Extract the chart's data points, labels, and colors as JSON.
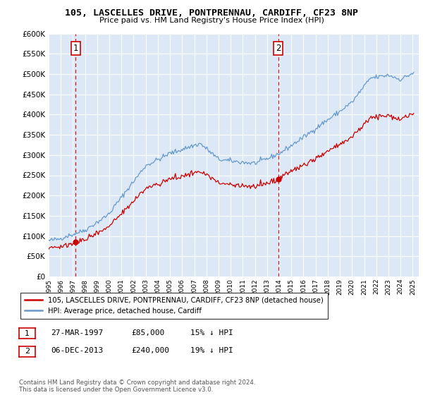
{
  "title1": "105, LASCELLES DRIVE, PONTPRENNAU, CARDIFF, CF23 8NP",
  "title2": "Price paid vs. HM Land Registry's House Price Index (HPI)",
  "legend_line1": "105, LASCELLES DRIVE, PONTPRENNAU, CARDIFF, CF23 8NP (detached house)",
  "legend_line2": "HPI: Average price, detached house, Cardiff",
  "annotation1_label": "1",
  "annotation1_date": "27-MAR-1997",
  "annotation1_price": "£85,000",
  "annotation1_hpi": "15% ↓ HPI",
  "annotation1_year": 1997.23,
  "annotation1_value": 85000,
  "annotation2_label": "2",
  "annotation2_date": "06-DEC-2013",
  "annotation2_price": "£240,000",
  "annotation2_hpi": "19% ↓ HPI",
  "annotation2_year": 2013.92,
  "annotation2_value": 240000,
  "sale_color": "#cc0000",
  "hpi_color": "#6699cc",
  "bg_color": "#dce8f5",
  "grid_color": "#ffffff",
  "footer": "Contains HM Land Registry data © Crown copyright and database right 2024.\nThis data is licensed under the Open Government Licence v3.0.",
  "ylim_min": 0,
  "ylim_max": 600000,
  "yticks": [
    0,
    50000,
    100000,
    150000,
    200000,
    250000,
    300000,
    350000,
    400000,
    450000,
    500000,
    550000,
    600000
  ]
}
